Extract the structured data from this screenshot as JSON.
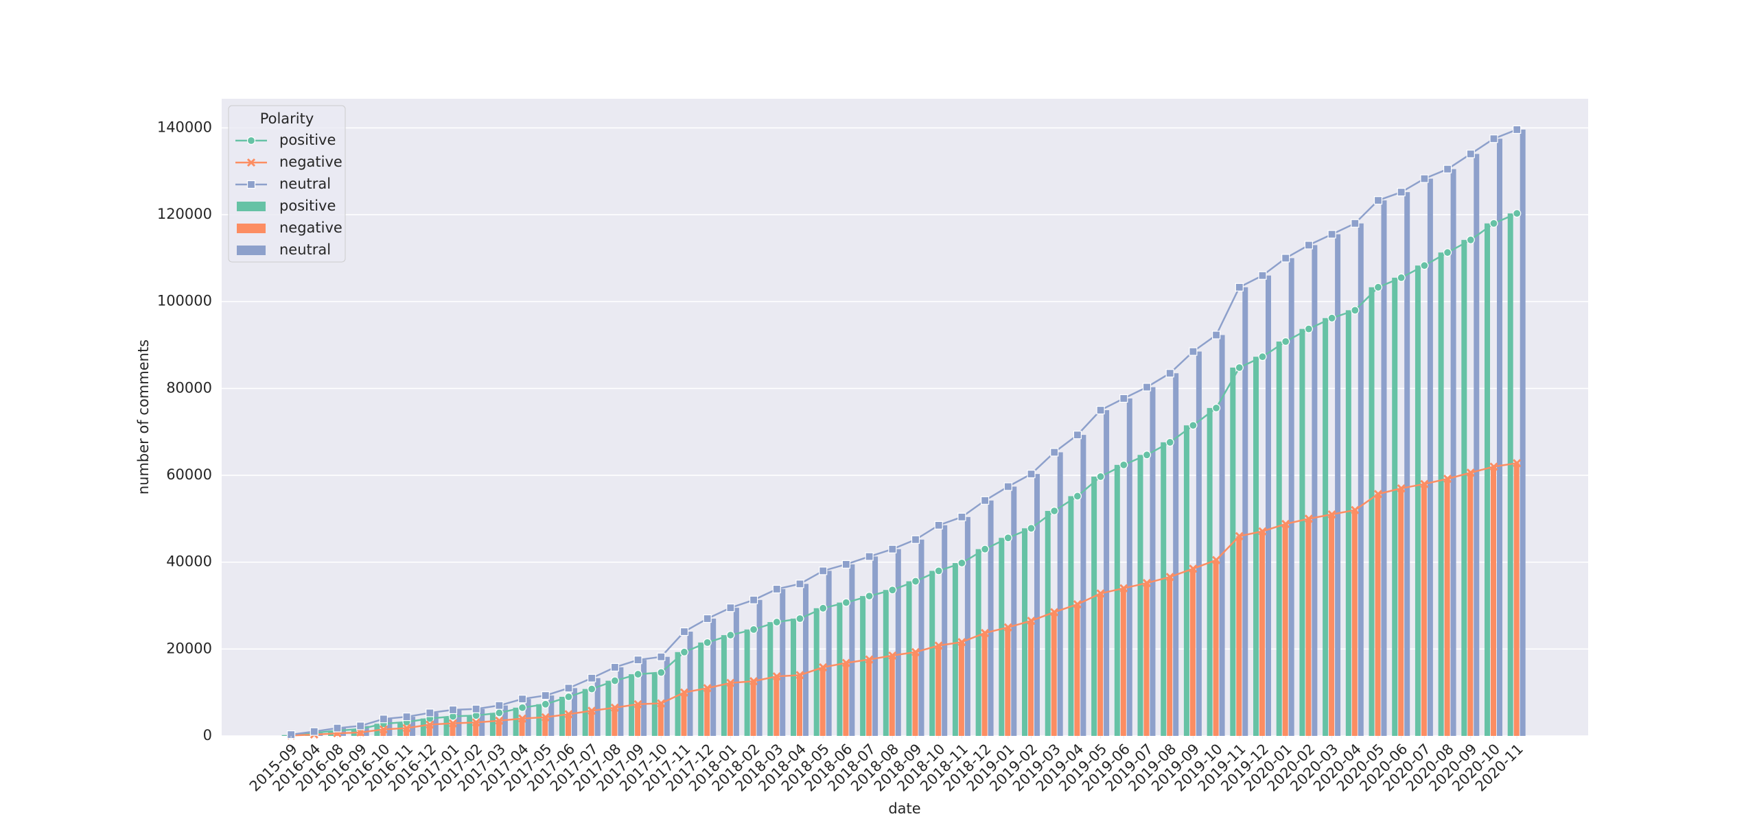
{
  "chart_data": {
    "type": "bar_line",
    "xlabel": "date",
    "ylabel": "number of comments",
    "legend_title": "Polarity",
    "legend": "upper left",
    "grid": true,
    "categories": [
      "2015-09",
      "2016-04",
      "2016-08",
      "2016-09",
      "2016-10",
      "2016-11",
      "2016-12",
      "2017-01",
      "2017-02",
      "2017-03",
      "2017-04",
      "2017-05",
      "2017-06",
      "2017-07",
      "2017-08",
      "2017-09",
      "2017-10",
      "2017-11",
      "2017-12",
      "2018-01",
      "2018-02",
      "2018-03",
      "2018-04",
      "2018-05",
      "2018-06",
      "2018-07",
      "2018-08",
      "2018-09",
      "2018-10",
      "2018-11",
      "2018-12",
      "2019-01",
      "2019-02",
      "2019-03",
      "2019-04",
      "2019-05",
      "2019-06",
      "2019-07",
      "2019-08",
      "2019-09",
      "2019-10",
      "2019-11",
      "2019-12",
      "2020-01",
      "2020-02",
      "2020-03",
      "2020-04",
      "2020-05",
      "2020-06",
      "2020-07",
      "2020-08",
      "2020-09",
      "2020-10",
      "2020-11"
    ],
    "series": [
      {
        "name": "positive",
        "color": "#66c2a5",
        "marker": "circle",
        "values": [
          200,
          700,
          1200,
          1600,
          2800,
          3200,
          4000,
          4500,
          4700,
          5300,
          6500,
          7300,
          9000,
          10800,
          12700,
          14200,
          14600,
          19300,
          21500,
          23200,
          24500,
          26200,
          27000,
          29400,
          30700,
          32200,
          33600,
          35600,
          38000,
          39800,
          43000,
          45600,
          47800,
          51800,
          55200,
          59700,
          62400,
          64700,
          67600,
          71500,
          75500,
          84800,
          87300,
          90800,
          93700,
          96200,
          98000,
          103300,
          105500,
          108300,
          111300,
          114200,
          118000,
          120300
        ]
      },
      {
        "name": "negative",
        "color": "#fc8d62",
        "marker": "x",
        "values": [
          100,
          300,
          600,
          800,
          1500,
          1800,
          2600,
          2900,
          3100,
          3500,
          4000,
          4300,
          5000,
          5800,
          6500,
          7300,
          7500,
          10000,
          11000,
          12200,
          12600,
          13700,
          14000,
          15800,
          16800,
          17600,
          18500,
          19300,
          20800,
          21600,
          23700,
          25000,
          26500,
          28500,
          30300,
          32800,
          34000,
          35200,
          36600,
          38500,
          40500,
          46000,
          47100,
          48800,
          50000,
          51000,
          52000,
          55700,
          57000,
          58000,
          59200,
          60600,
          62000,
          62800
        ]
      },
      {
        "name": "neutral",
        "color": "#8da0cb",
        "marker": "square",
        "values": [
          300,
          1000,
          1800,
          2300,
          3900,
          4400,
          5300,
          6000,
          6200,
          7000,
          8500,
          9300,
          11000,
          13300,
          15800,
          17500,
          18200,
          24000,
          27000,
          29500,
          31300,
          33800,
          35000,
          38000,
          39500,
          41300,
          43000,
          45200,
          48500,
          50400,
          54200,
          57400,
          60300,
          65300,
          69300,
          75000,
          77700,
          80300,
          83500,
          88500,
          92300,
          103300,
          106000,
          110000,
          113000,
          115500,
          118000,
          123300,
          125200,
          128300,
          130500,
          134000,
          137500,
          139600
        ]
      }
    ],
    "ylim": [
      0,
      146700
    ],
    "yticks": [
      0,
      20000,
      40000,
      60000,
      80000,
      100000,
      120000,
      140000
    ]
  }
}
